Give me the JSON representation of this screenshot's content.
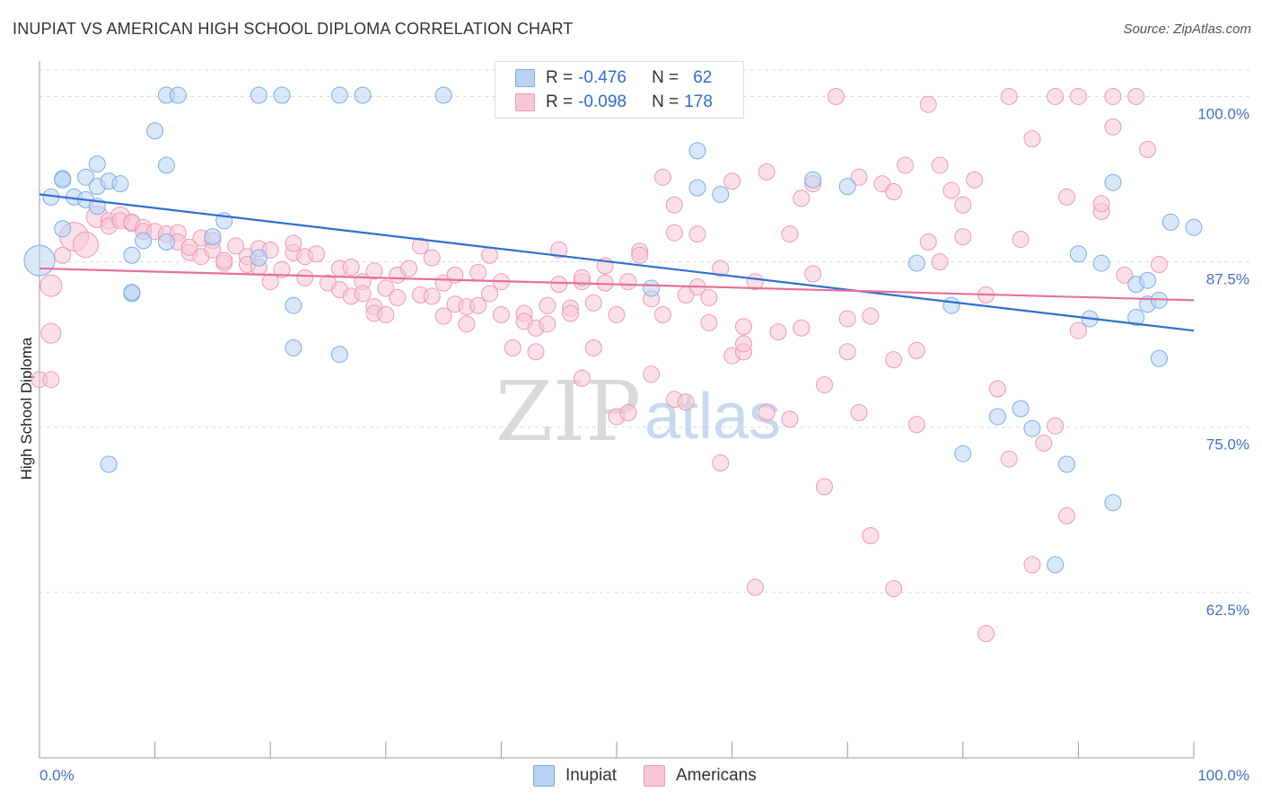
{
  "chart_data": {
    "type": "scatter",
    "title": "INUPIAT VS AMERICAN HIGH SCHOOL DIPLOMA CORRELATION CHART",
    "source": "Source: ZipAtlas.com",
    "ylabel": "High School Diploma",
    "xlabel": "",
    "xlim": [
      0,
      100
    ],
    "ylim": [
      50,
      102
    ],
    "x_tick_labels": [
      "0.0%",
      "100.0%"
    ],
    "y_ticks": [
      {
        "value": 100.0,
        "label": "100.0%"
      },
      {
        "value": 87.5,
        "label": "87.5%"
      },
      {
        "value": 75.0,
        "label": "75.0%"
      },
      {
        "value": 62.5,
        "label": "62.5%"
      }
    ],
    "watermark": {
      "part1": "ZIP",
      "part2": "atlas"
    },
    "legend": [
      {
        "name": "Inupiat",
        "r_label": "R =",
        "r_value": "-0.476",
        "n_label": "N =",
        "n_value": "62"
      },
      {
        "name": "Americans",
        "r_label": "R =",
        "r_value": "-0.098",
        "n_label": "N =",
        "n_value": "178"
      }
    ],
    "series": [
      {
        "name": "Inupiat",
        "color": "#7aaee8",
        "fill": "#b9d3f3",
        "trend_color": "#2f6fd0",
        "trend": {
          "x": [
            0,
            100
          ],
          "y": [
            92.6,
            82.3
          ]
        },
        "points": [
          [
            0,
            87.6
          ],
          [
            1,
            92.4
          ],
          [
            2,
            90.0
          ],
          [
            2,
            93.8
          ],
          [
            2,
            93.7
          ],
          [
            3,
            92.4
          ],
          [
            4,
            92.2
          ],
          [
            4,
            93.9
          ],
          [
            5,
            93.2
          ],
          [
            5,
            91.7
          ],
          [
            5,
            94.9
          ],
          [
            6,
            93.6
          ],
          [
            7,
            93.4
          ],
          [
            8,
            85.1
          ],
          [
            8,
            85.2
          ],
          [
            8,
            88.0
          ],
          [
            9,
            89.1
          ],
          [
            10,
            97.4
          ],
          [
            11,
            89.0
          ],
          [
            11,
            94.8
          ],
          [
            11,
            100.1
          ],
          [
            12,
            100.1
          ],
          [
            15,
            89.4
          ],
          [
            16,
            90.6
          ],
          [
            19,
            100.1
          ],
          [
            19,
            87.8
          ],
          [
            21,
            100.1
          ],
          [
            22,
            84.2
          ],
          [
            22,
            81.0
          ],
          [
            26,
            100.1
          ],
          [
            26,
            80.5
          ],
          [
            28,
            100.1
          ],
          [
            35,
            100.1
          ],
          [
            47,
            100.1
          ],
          [
            53,
            85.5
          ],
          [
            57,
            95.9
          ],
          [
            57,
            93.1
          ],
          [
            59,
            92.6
          ],
          [
            67,
            93.7
          ],
          [
            70,
            93.2
          ],
          [
            76,
            87.4
          ],
          [
            79,
            84.2
          ],
          [
            80,
            73.0
          ],
          [
            83,
            75.8
          ],
          [
            85,
            76.4
          ],
          [
            86,
            74.9
          ],
          [
            88,
            64.6
          ],
          [
            89,
            72.2
          ],
          [
            90,
            88.1
          ],
          [
            91,
            83.2
          ],
          [
            92,
            87.4
          ],
          [
            93,
            69.3
          ],
          [
            93,
            93.5
          ],
          [
            95,
            83.3
          ],
          [
            95,
            85.8
          ],
          [
            96,
            86.1
          ],
          [
            96,
            84.3
          ],
          [
            97,
            80.2
          ],
          [
            97,
            84.6
          ],
          [
            98,
            90.5
          ],
          [
            100,
            90.1
          ],
          [
            6,
            72.2
          ]
        ]
      },
      {
        "name": "Americans",
        "color": "#ef9ab5",
        "fill": "#f8c6d5",
        "trend_color": "#e8709a",
        "trend": {
          "x": [
            0,
            100
          ],
          "y": [
            87.0,
            84.6
          ]
        },
        "points": [
          [
            0,
            78.6
          ],
          [
            1,
            82.1
          ],
          [
            1,
            85.7
          ],
          [
            2,
            88.0
          ],
          [
            3,
            89.4
          ],
          [
            4,
            88.8
          ],
          [
            5,
            90.9
          ],
          [
            6,
            90.6
          ],
          [
            6,
            90.2
          ],
          [
            7,
            90.9
          ],
          [
            7,
            90.6
          ],
          [
            8,
            90.4
          ],
          [
            8,
            90.5
          ],
          [
            9,
            90.1
          ],
          [
            9,
            89.8
          ],
          [
            10,
            89.8
          ],
          [
            11,
            89.6
          ],
          [
            12,
            89.7
          ],
          [
            12,
            89.0
          ],
          [
            13,
            88.2
          ],
          [
            13,
            88.6
          ],
          [
            14,
            87.9
          ],
          [
            14,
            89.3
          ],
          [
            15,
            89.1
          ],
          [
            15,
            88.4
          ],
          [
            16,
            87.4
          ],
          [
            16,
            87.6
          ],
          [
            17,
            88.7
          ],
          [
            18,
            87.9
          ],
          [
            18,
            87.3
          ],
          [
            19,
            87.1
          ],
          [
            19,
            88.5
          ],
          [
            20,
            86.0
          ],
          [
            20,
            88.4
          ],
          [
            21,
            86.9
          ],
          [
            22,
            88.2
          ],
          [
            22,
            88.9
          ],
          [
            23,
            86.3
          ],
          [
            23,
            87.9
          ],
          [
            24,
            88.1
          ],
          [
            25,
            85.9
          ],
          [
            26,
            85.4
          ],
          [
            26,
            87.0
          ],
          [
            27,
            87.1
          ],
          [
            27,
            84.9
          ],
          [
            28,
            86.0
          ],
          [
            28,
            85.1
          ],
          [
            29,
            84.1
          ],
          [
            29,
            86.8
          ],
          [
            29,
            83.6
          ],
          [
            30,
            85.5
          ],
          [
            30,
            83.5
          ],
          [
            31,
            84.8
          ],
          [
            31,
            86.5
          ],
          [
            32,
            87.0
          ],
          [
            33,
            85.0
          ],
          [
            33,
            88.7
          ],
          [
            34,
            87.8
          ],
          [
            34,
            84.9
          ],
          [
            35,
            85.9
          ],
          [
            35,
            83.4
          ],
          [
            36,
            86.5
          ],
          [
            36,
            84.3
          ],
          [
            37,
            82.8
          ],
          [
            37,
            84.1
          ],
          [
            38,
            86.7
          ],
          [
            38,
            84.2
          ],
          [
            39,
            85.1
          ],
          [
            39,
            88.0
          ],
          [
            40,
            86.0
          ],
          [
            40,
            83.5
          ],
          [
            41,
            81.0
          ],
          [
            42,
            83.6
          ],
          [
            42,
            83.0
          ],
          [
            43,
            82.5
          ],
          [
            43,
            80.7
          ],
          [
            44,
            82.8
          ],
          [
            44,
            84.2
          ],
          [
            45,
            88.4
          ],
          [
            45,
            85.8
          ],
          [
            46,
            84.0
          ],
          [
            46,
            83.6
          ],
          [
            47,
            86.0
          ],
          [
            47,
            86.3
          ],
          [
            47,
            78.7
          ],
          [
            48,
            84.4
          ],
          [
            48,
            81.0
          ],
          [
            49,
            85.9
          ],
          [
            49,
            87.2
          ],
          [
            50,
            75.8
          ],
          [
            50,
            83.5
          ],
          [
            51,
            86.0
          ],
          [
            51,
            76.1
          ],
          [
            52,
            88.3
          ],
          [
            52,
            88.0
          ],
          [
            53,
            79.0
          ],
          [
            53,
            84.7
          ],
          [
            54,
            93.9
          ],
          [
            54,
            83.5
          ],
          [
            55,
            77.1
          ],
          [
            55,
            89.7
          ],
          [
            55,
            91.8
          ],
          [
            56,
            85.0
          ],
          [
            56,
            76.9
          ],
          [
            57,
            89.6
          ],
          [
            57,
            85.6
          ],
          [
            58,
            84.8
          ],
          [
            58,
            82.9
          ],
          [
            59,
            87.0
          ],
          [
            59,
            72.3
          ],
          [
            60,
            80.4
          ],
          [
            60,
            93.6
          ],
          [
            61,
            80.7
          ],
          [
            61,
            81.3
          ],
          [
            61,
            82.6
          ],
          [
            62,
            62.9
          ],
          [
            62,
            86.0
          ],
          [
            63,
            94.3
          ],
          [
            63,
            76.1
          ],
          [
            64,
            82.2
          ],
          [
            65,
            75.6
          ],
          [
            65,
            89.6
          ],
          [
            66,
            82.5
          ],
          [
            66,
            92.3
          ],
          [
            67,
            86.6
          ],
          [
            67,
            93.4
          ],
          [
            68,
            70.5
          ],
          [
            68,
            78.2
          ],
          [
            69,
            100.0
          ],
          [
            70,
            83.2
          ],
          [
            70,
            80.7
          ],
          [
            71,
            93.9
          ],
          [
            71,
            76.1
          ],
          [
            72,
            83.4
          ],
          [
            72,
            66.8
          ],
          [
            73,
            93.4
          ],
          [
            74,
            92.8
          ],
          [
            74,
            62.8
          ],
          [
            74,
            80.1
          ],
          [
            75,
            94.8
          ],
          [
            76,
            75.2
          ],
          [
            76,
            80.8
          ],
          [
            77,
            89.0
          ],
          [
            77,
            99.4
          ],
          [
            78,
            94.8
          ],
          [
            78,
            87.5
          ],
          [
            79,
            92.9
          ],
          [
            80,
            89.4
          ],
          [
            80,
            91.8
          ],
          [
            81,
            93.7
          ],
          [
            82,
            85.0
          ],
          [
            82,
            59.4
          ],
          [
            83,
            77.9
          ],
          [
            84,
            72.6
          ],
          [
            84,
            100.0
          ],
          [
            85,
            89.2
          ],
          [
            86,
            64.6
          ],
          [
            86,
            96.8
          ],
          [
            87,
            73.8
          ],
          [
            88,
            100.0
          ],
          [
            88,
            75.1
          ],
          [
            89,
            68.3
          ],
          [
            89,
            92.4
          ],
          [
            90,
            82.3
          ],
          [
            90,
            100.0
          ],
          [
            92,
            91.3
          ],
          [
            92,
            91.9
          ],
          [
            93,
            97.7
          ],
          [
            93,
            100.0
          ],
          [
            94,
            86.5
          ],
          [
            95,
            100.0
          ],
          [
            96,
            96.0
          ],
          [
            97,
            87.3
          ],
          [
            1,
            78.6
          ]
        ]
      }
    ]
  }
}
